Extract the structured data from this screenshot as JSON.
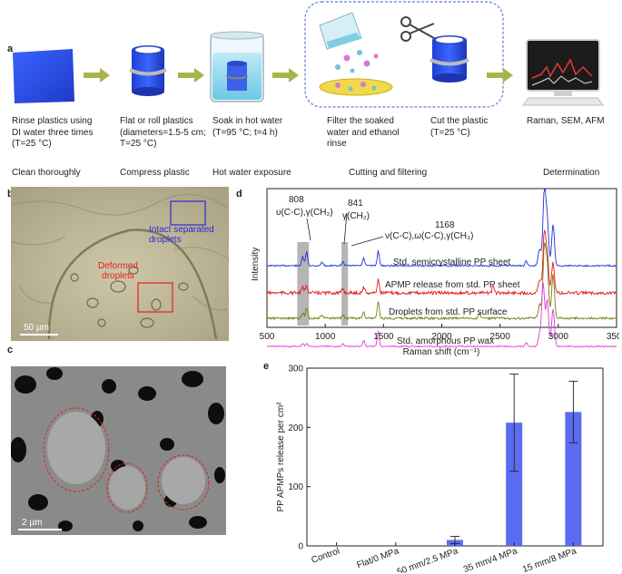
{
  "panels": {
    "a": "a",
    "b": "b",
    "c": "c",
    "d": "d",
    "e": "e"
  },
  "steps": [
    {
      "text": "Rinse plastics using\nDI water three times\n(T=25 °C)"
    },
    {
      "text": "Flat or roll plastics\n(diameters=1.5-5 cm;\nT=25 °C)"
    },
    {
      "text": "Soak in hot water\n(T=95 °C; t=4 h)"
    },
    {
      "text": "Filter the soaked\nwater and ethanol\nrinse"
    },
    {
      "text": "Cut the plastic\n(T=25 °C)"
    },
    {
      "text": "Raman, SEM, AFM"
    }
  ],
  "categories": [
    "Clean thoroughly",
    "Compress plastic",
    "Hot water exposure",
    "Cutting and filtering",
    "Determination"
  ],
  "micrograph_b": {
    "scale": "50 µm",
    "label_intact": "Intact separated\ndroplets",
    "label_deformed": "Deformed\ndroplets",
    "color_intact": "#2b2bd6",
    "color_deformed": "#e0221c"
  },
  "micrograph_c": {
    "scale": "2 µm"
  },
  "chart_raman": {
    "type": "line",
    "xlabel": "Raman shift (cm⁻¹)",
    "ylabel": "Intensity",
    "xlim": [
      500,
      3500
    ],
    "xticks": [
      "500",
      "1000",
      "1500",
      "2000",
      "2500",
      "3000",
      "3500"
    ],
    "peak_labels": {
      "p808": "808",
      "p841": "841",
      "p1168": "1168",
      "a808": "υ(C-C),γ(CH₂)",
      "a841": "γ(CH₂)",
      "a1168": "ν(C-C),ω(C-C),γ(CH₃)"
    },
    "series": [
      {
        "name": "Std. semicrystalline PP sheet",
        "color": "#1f2fe0"
      },
      {
        "name": "APMP release from std. PP sheet",
        "color": "#e51a1a"
      },
      {
        "name": "Droplets from std. PP surface",
        "color": "#7a7a10"
      },
      {
        "name": "Std. amorphous PP wax",
        "color": "#e03bd8"
      }
    ]
  },
  "chart_data": {
    "type": "bar",
    "categories": [
      "Control",
      "Flat/0 MPa",
      "50 mm/2.5 MPa",
      "35 mm/4 MPa",
      "15 mm/8 MPa"
    ],
    "values": [
      0,
      0,
      10,
      208,
      226
    ],
    "errors": [
      0,
      0,
      6,
      82,
      52
    ],
    "ylabel": "PP APMPs release per cm²",
    "ylim": [
      0,
      300
    ],
    "yticks": [
      "0",
      "100",
      "200",
      "300"
    ],
    "bar_color": "#5b6cf0"
  }
}
